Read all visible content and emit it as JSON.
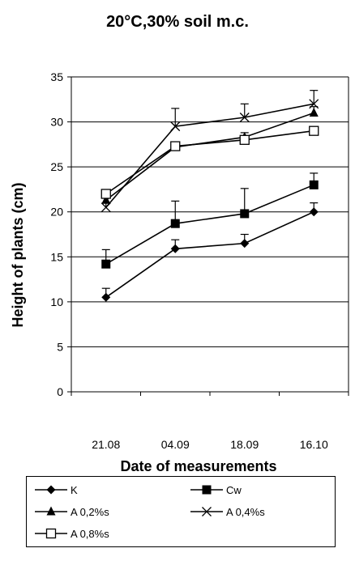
{
  "chart_data": {
    "type": "line",
    "title": "20°C,30% soil m.c.",
    "xlabel": "Date of measurements",
    "ylabel": "Height of plants (cm)",
    "categories": [
      "21.08",
      "04.09",
      "18.09",
      "16.10"
    ],
    "ylim": [
      0,
      35
    ],
    "yticks": [
      0,
      5,
      10,
      15,
      20,
      25,
      30,
      35
    ],
    "grid": true,
    "legend_position": "bottom",
    "series": [
      {
        "name": "K",
        "marker": "diamond",
        "values": [
          10.5,
          15.9,
          16.5,
          20.0
        ],
        "errors": [
          1.0,
          1.0,
          1.0,
          1.0
        ]
      },
      {
        "name": "Cw",
        "marker": "square",
        "values": [
          14.2,
          18.7,
          19.8,
          23.0
        ],
        "errors": [
          1.6,
          2.5,
          2.8,
          1.3
        ]
      },
      {
        "name": "A 0,2%s",
        "marker": "triangle",
        "values": [
          21.3,
          27.2,
          28.3,
          31.0
        ],
        "errors": [
          0.5,
          0.5,
          0.5,
          0.7
        ]
      },
      {
        "name": "A 0,4%s",
        "marker": "x",
        "values": [
          20.5,
          29.5,
          30.5,
          32.0
        ],
        "errors": [
          0.5,
          2.0,
          1.5,
          1.5
        ]
      },
      {
        "name": "A 0,8%s",
        "marker": "open-square",
        "values": [
          22.0,
          27.3,
          28.0,
          29.0
        ],
        "errors": [
          0.3,
          0.3,
          0.3,
          0.3
        ]
      }
    ]
  }
}
